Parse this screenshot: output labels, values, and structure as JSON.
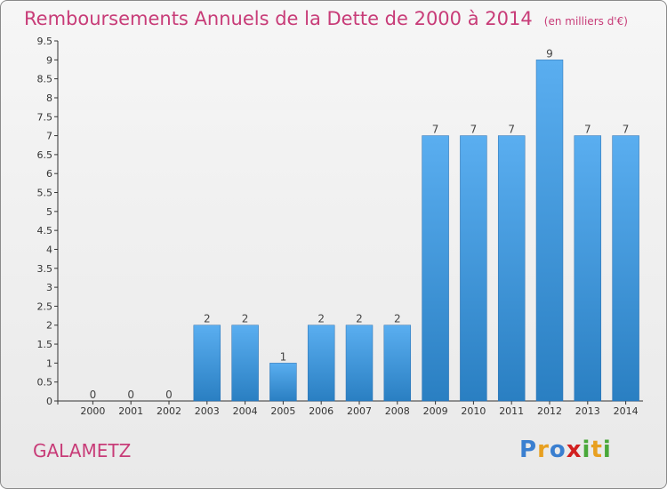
{
  "title": "Remboursements Annuels de la Dette de 2000 à 2014",
  "unit": "(en milliers d'€)",
  "commune": "GALAMETZ",
  "brand": {
    "letters": [
      "P",
      "r",
      "o",
      "x",
      "i",
      "t",
      "i"
    ],
    "colors": [
      "#3a7fd0",
      "#e8a020",
      "#3a7fd0",
      "#d22020",
      "#4aa83a",
      "#e8a020",
      "#4aa83a"
    ]
  },
  "colors": {
    "title": "#c83c78",
    "bar_light": "#5aaef0",
    "bar_dark": "#2a7fc2"
  },
  "chart_data": {
    "type": "bar",
    "categories": [
      "2000",
      "2001",
      "2002",
      "2003",
      "2004",
      "2005",
      "2006",
      "2007",
      "2008",
      "2009",
      "2010",
      "2011",
      "2012",
      "2013",
      "2014"
    ],
    "values": [
      0,
      0,
      0,
      2,
      2,
      1,
      2,
      2,
      2,
      7,
      7,
      7,
      9,
      7,
      7
    ],
    "labels": [
      "0",
      "0",
      "0",
      "2",
      "2",
      "1",
      "2",
      "2",
      "2",
      "7",
      "7",
      "7",
      "9",
      "7",
      "7"
    ],
    "yticks": [
      "0",
      "0.5",
      "1",
      "1.5",
      "2",
      "2.5",
      "3",
      "3.5",
      "4",
      "4.5",
      "5",
      "5.5",
      "6",
      "6.5",
      "7",
      "7.5",
      "8",
      "8.5",
      "9",
      "9.5"
    ],
    "ylim": [
      0,
      9.5
    ],
    "grid": false
  }
}
